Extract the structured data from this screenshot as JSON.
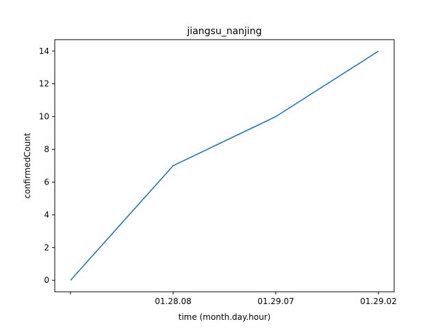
{
  "chart_data": {
    "type": "line",
    "title": "jiangsu_nanjing",
    "xlabel": "time (month.day.hour)",
    "ylabel": "confirmedCount",
    "categories": [
      "",
      "01.28.08",
      "01.29.07",
      "01.29.02"
    ],
    "series": [
      {
        "values": [
          0,
          7,
          10,
          14
        ],
        "color": "#1f77b4"
      }
    ],
    "yticks": [
      0,
      2,
      4,
      6,
      8,
      10,
      12,
      14
    ],
    "ylim": [
      -0.7,
      14.7
    ],
    "grid": false,
    "legend": "none"
  }
}
